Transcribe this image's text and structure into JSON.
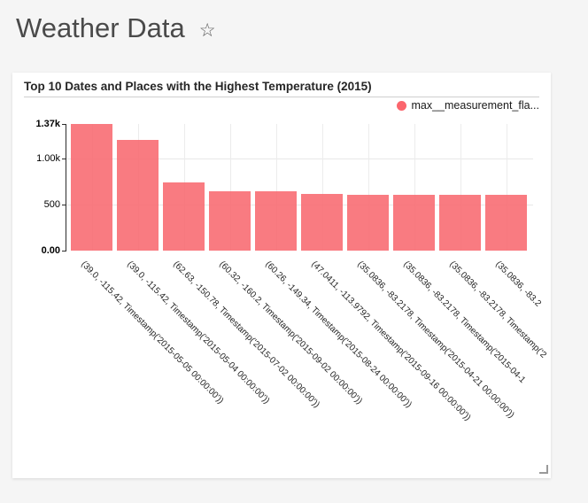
{
  "header": {
    "title": "Weather Data",
    "favorite_icon": "star-outline",
    "star_glyph": "☆"
  },
  "card": {
    "title": "Top 10 Dates and Places with the Highest Temperature (2015)",
    "legend": {
      "label": "max__measurement_fla...",
      "color": "#fb666d"
    }
  },
  "colors": {
    "background": "#f5f5f5",
    "card_bg": "#ffffff",
    "bar": "#f8696f",
    "legend_dot": "#fb666d",
    "axis": "#2b2b2b",
    "grid": "#e8e8e8",
    "text": "#262626"
  },
  "chart_data": {
    "type": "bar",
    "title": "Top 10 Dates and Places with the Highest Temperature (2015)",
    "legend": [
      "max__measurement_fla..."
    ],
    "legend_position": "top-right",
    "grid": true,
    "x_label_rotation": 45,
    "ylim": [
      0,
      1370
    ],
    "yticks": [
      {
        "label": "1.37k",
        "value": 1370,
        "bold": true
      },
      {
        "label": "1.00k",
        "value": 1000,
        "bold": false
      },
      {
        "label": "500",
        "value": 500,
        "bold": false
      },
      {
        "label": "0.00",
        "value": 0,
        "bold": true
      }
    ],
    "categories": [
      "(39.0, -115.42, Timestamp('2015-05-05 00:00:00'))",
      "(39.0, -115.42, Timestamp('2015-05-04 00:00:00'))",
      "(62.63, -150.78, Timestamp('2015-07-02 00:00:00'))",
      "(60.32, -160.2, Timestamp('2015-09-02 00:00:00'))",
      "(60.26, -149.34, Timestamp('2015-08-24 00:00:00'))",
      "(47.0411, -113.9792, Timestamp('2015-09-16 00:00:00'))",
      "(35.0836, -83.2178, Timestamp('2015-04-21 00:00:00'))",
      "(35.0836, -83.2178, Timestamp('2015-04-1",
      "(35.0836, -83.2178, Timestamp('2",
      "(35.0836, -83.2"
    ],
    "values": [
      1370,
      1200,
      740,
      645,
      640,
      610,
      605,
      603,
      602,
      600
    ]
  }
}
